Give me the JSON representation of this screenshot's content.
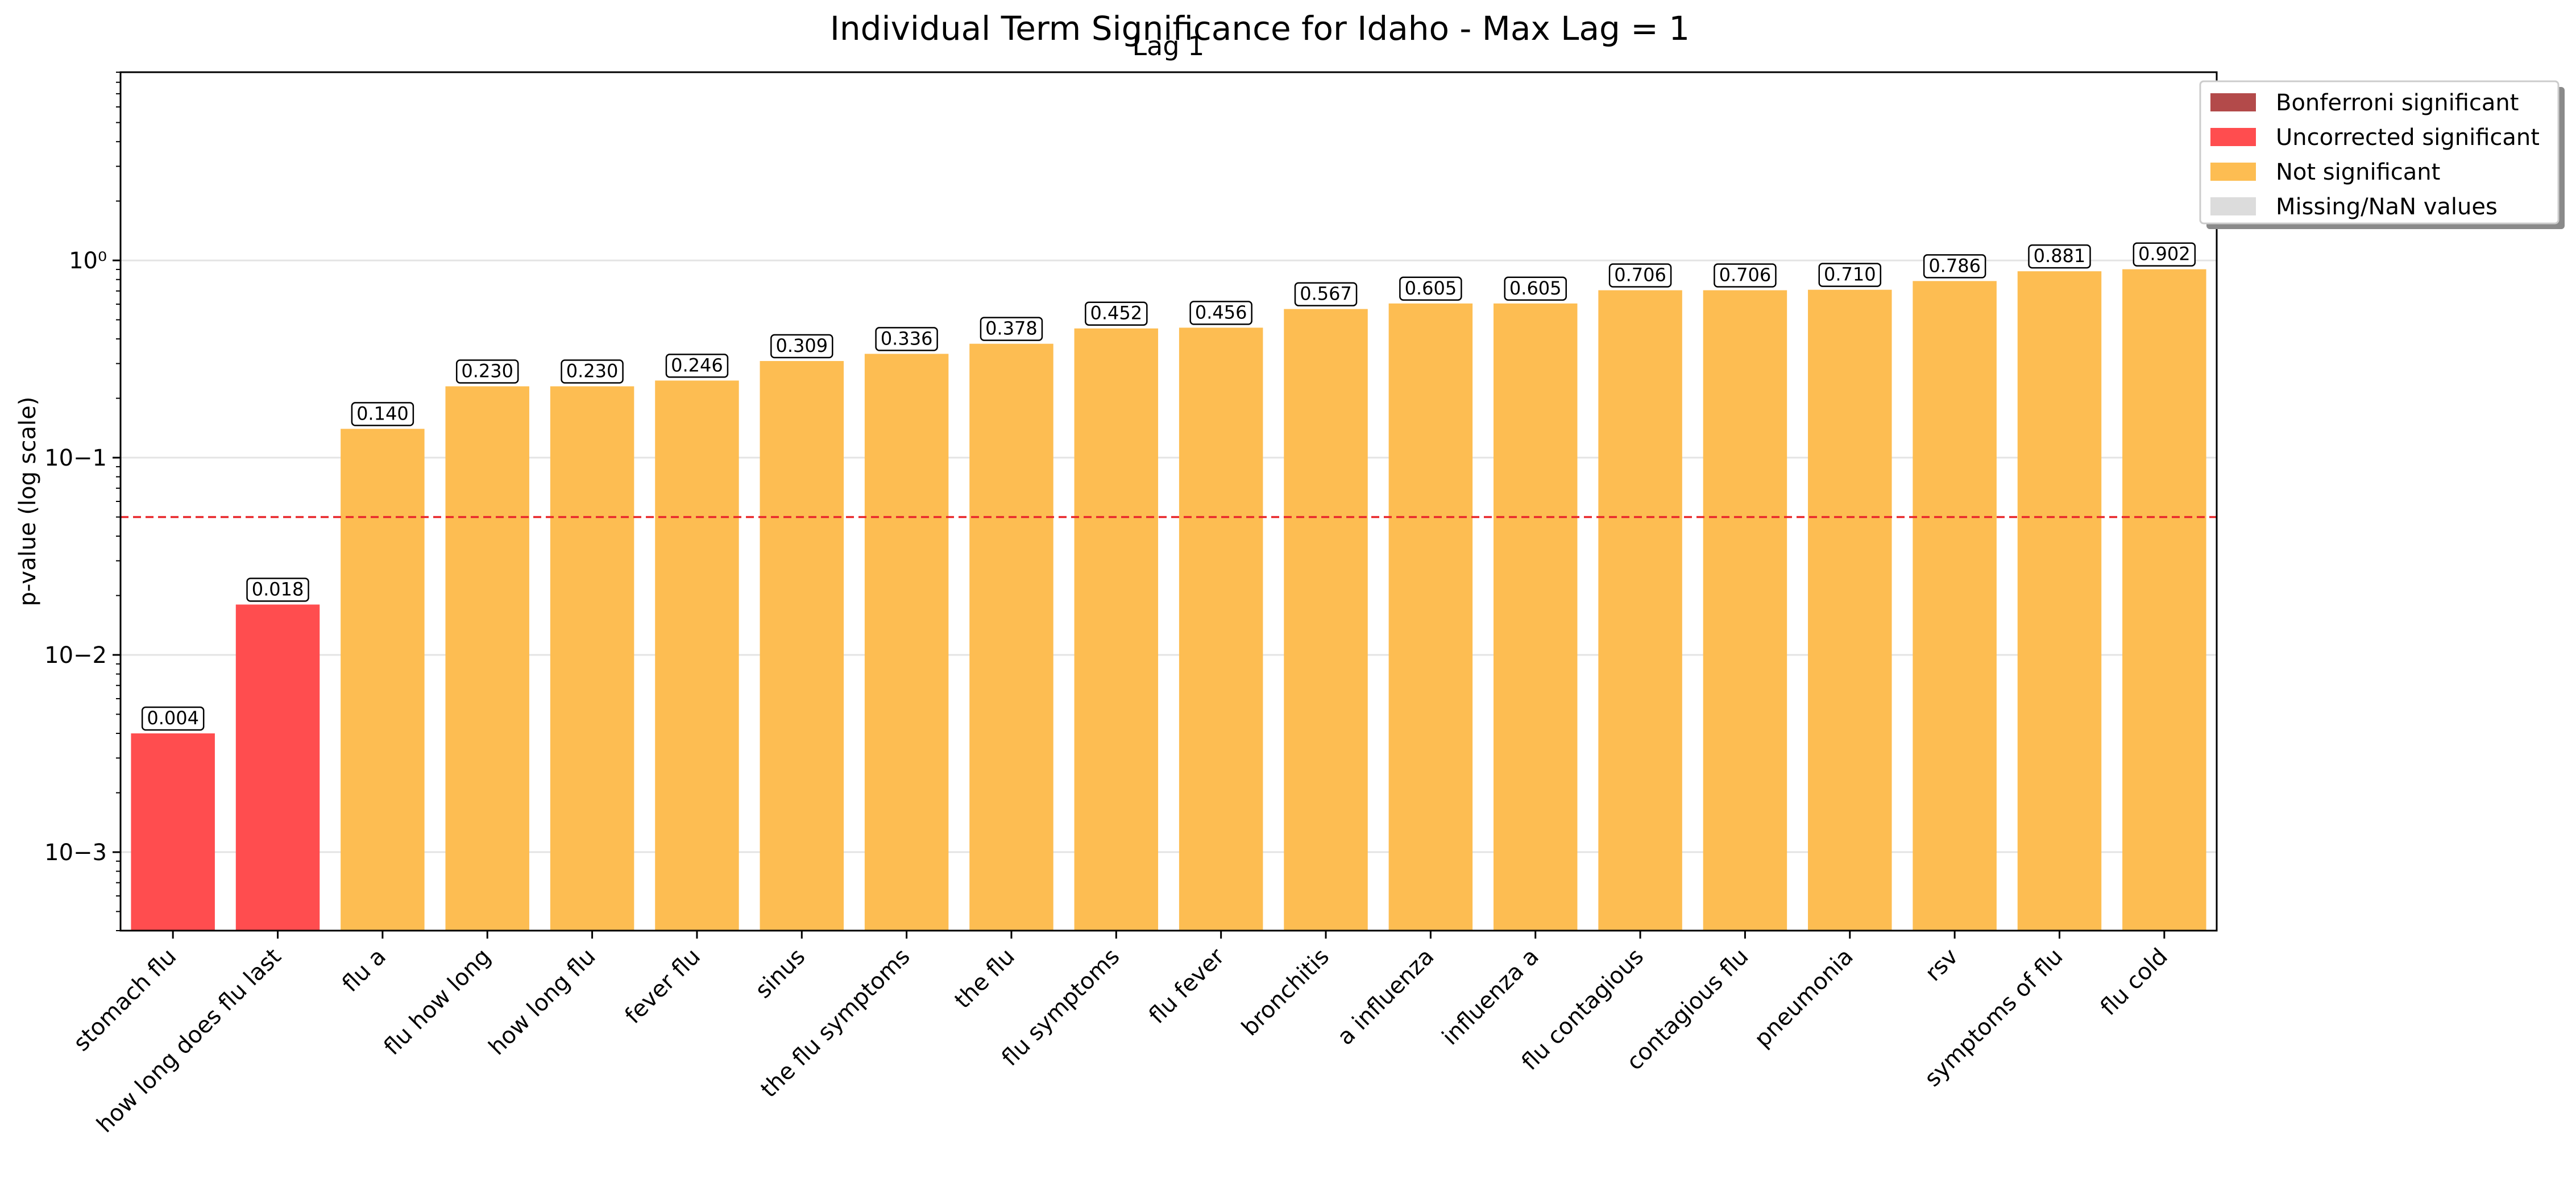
{
  "chart_data": {
    "type": "bar",
    "title": "Individual Term Significance for Idaho - Max Lag = 1",
    "subtitle": "Lag 1",
    "ylabel": "p-value (log scale)",
    "xlabel": "",
    "y_scale": "log",
    "ylim": [
      0.0004,
      9
    ],
    "y_tick_labels": [
      "10−3",
      "10−2",
      "10−1",
      "10⁰"
    ],
    "y_tick_values": [
      0.001,
      0.01,
      0.1,
      1
    ],
    "grid": true,
    "threshold": {
      "value": 0.05,
      "color": "#e8262b",
      "style": "dashed"
    },
    "legend_position": "top-right",
    "legend": [
      {
        "label": "Bonferroni significant",
        "color": "#b34a4a"
      },
      {
        "label": "Uncorrected significant",
        "color": "#ff4d4f"
      },
      {
        "label": "Not significant",
        "color": "#fdbd52"
      },
      {
        "label": "Missing/NaN values",
        "color": "#dcdcdc"
      }
    ],
    "categories": [
      "stomach flu",
      "how long does flu last",
      "flu a",
      "flu how long",
      "how long flu",
      "fever flu",
      "sinus",
      "the flu symptoms",
      "the flu",
      "flu symptoms",
      "flu fever",
      "bronchitis",
      "a influenza",
      "influenza a",
      "flu contagious",
      "contagious flu",
      "pneumonia",
      "rsv",
      "symptoms of flu",
      "flu cold"
    ],
    "values": [
      0.004,
      0.018,
      0.14,
      0.23,
      0.23,
      0.246,
      0.309,
      0.336,
      0.378,
      0.452,
      0.456,
      0.567,
      0.605,
      0.605,
      0.706,
      0.706,
      0.71,
      0.786,
      0.881,
      0.902
    ],
    "value_labels": [
      "0.004",
      "0.018",
      "0.140",
      "0.230",
      "0.230",
      "0.246",
      "0.309",
      "0.336",
      "0.378",
      "0.452",
      "0.456",
      "0.567",
      "0.605",
      "0.605",
      "0.706",
      "0.706",
      "0.710",
      "0.786",
      "0.881",
      "0.902"
    ],
    "bar_status": [
      "Uncorrected significant",
      "Uncorrected significant",
      "Not significant",
      "Not significant",
      "Not significant",
      "Not significant",
      "Not significant",
      "Not significant",
      "Not significant",
      "Not significant",
      "Not significant",
      "Not significant",
      "Not significant",
      "Not significant",
      "Not significant",
      "Not significant",
      "Not significant",
      "Not significant",
      "Not significant",
      "Not significant"
    ]
  }
}
